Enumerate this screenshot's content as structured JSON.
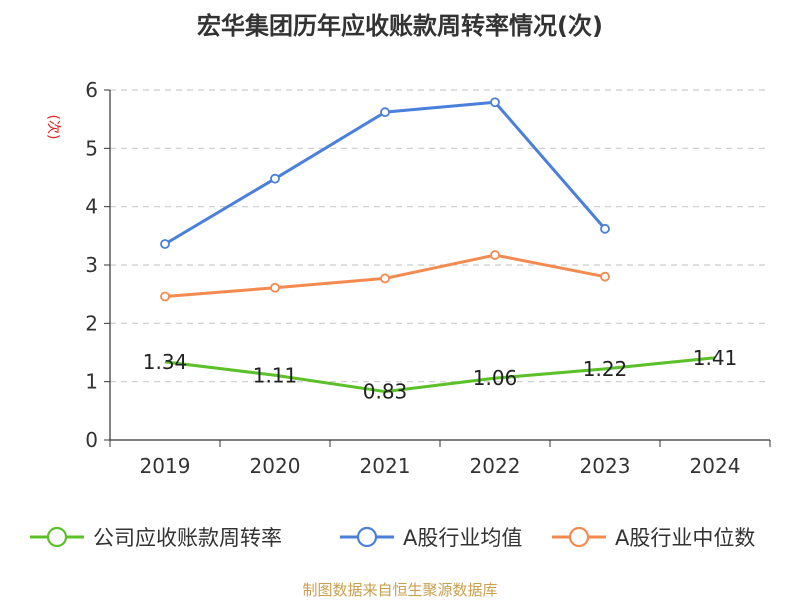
{
  "chart_data": {
    "type": "line",
    "title": "宏华集团历年应收账款周转率情况(次)",
    "ylabel": "(次)",
    "categories": [
      "2019",
      "2020",
      "2021",
      "2022",
      "2023",
      "2024"
    ],
    "ylim": [
      0,
      6
    ],
    "yticks": [
      "0",
      "1",
      "2",
      "3",
      "4",
      "5",
      "6"
    ],
    "grid": true,
    "legend_position": "bottom",
    "series": [
      {
        "name": "公司应收账款周转率",
        "color": "#5cc02a",
        "values": [
          1.34,
          1.11,
          0.83,
          1.06,
          1.22,
          1.41
        ],
        "labels": [
          "1.34",
          "1.11",
          "0.83",
          "1.06",
          "1.22",
          "1.41"
        ],
        "show_markers": false
      },
      {
        "name": "A股行业均值",
        "color": "#4a7fdb",
        "values": [
          3.36,
          4.48,
          5.62,
          5.79,
          3.62,
          null
        ],
        "show_markers": true
      },
      {
        "name": "A股行业中位数",
        "color": "#f58a4f",
        "values": [
          2.46,
          2.61,
          2.77,
          3.17,
          2.8,
          null
        ],
        "show_markers": true
      }
    ]
  },
  "footer": "制图数据来自恒生聚源数据库"
}
